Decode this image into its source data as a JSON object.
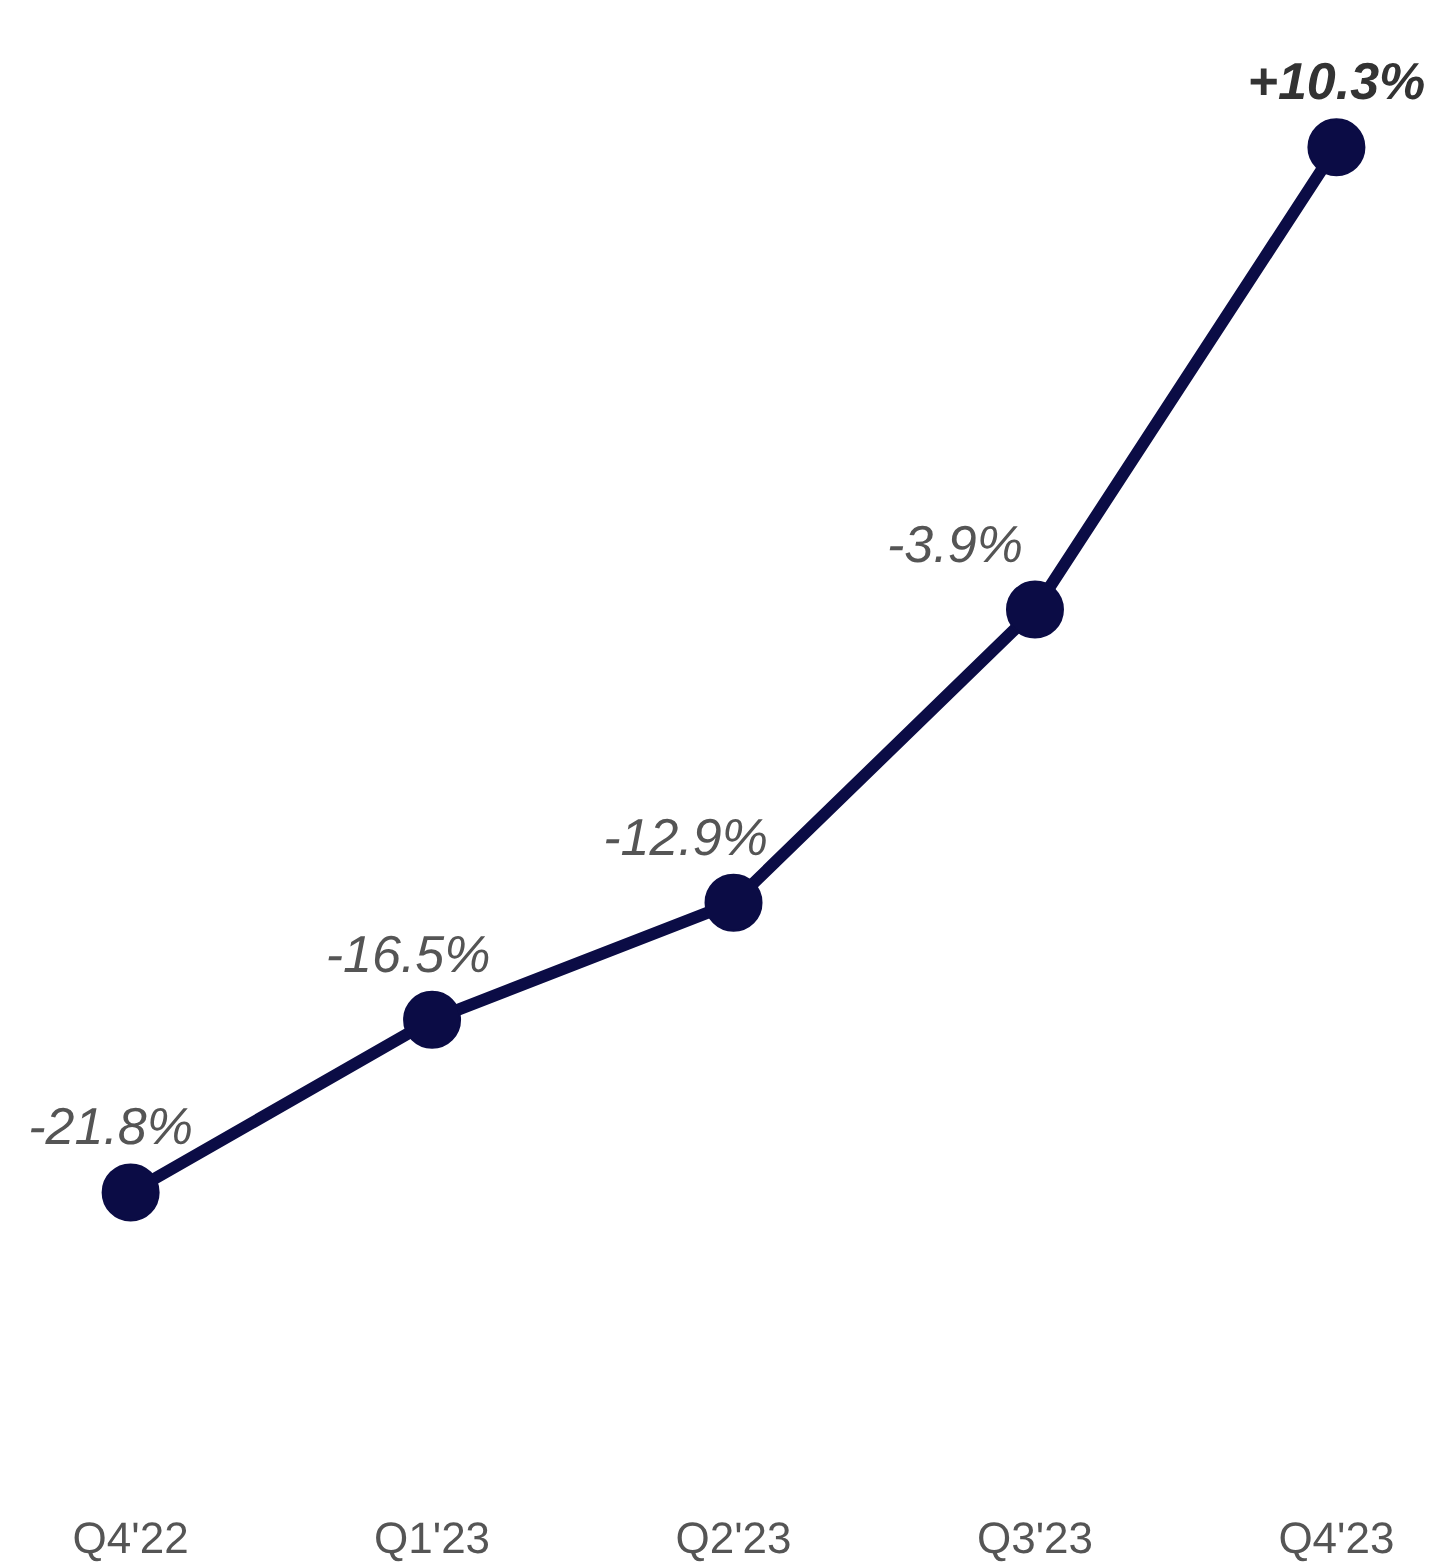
{
  "chart_data": {
    "type": "line",
    "categories": [
      "Q4'22",
      "Q1'23",
      "Q2'23",
      "Q3'23",
      "Q4'23"
    ],
    "series": [
      {
        "color": "#0b0c45",
        "values": [
          -21.8,
          -16.5,
          -12.9,
          -3.9,
          10.3
        ],
        "value_labels": [
          "-21.8%",
          "-16.5%",
          "-12.9%",
          "-3.9%",
          "+10.3%"
        ]
      }
    ],
    "marker": "circle",
    "line_style": "solid",
    "tick_labels": "x"
  }
}
